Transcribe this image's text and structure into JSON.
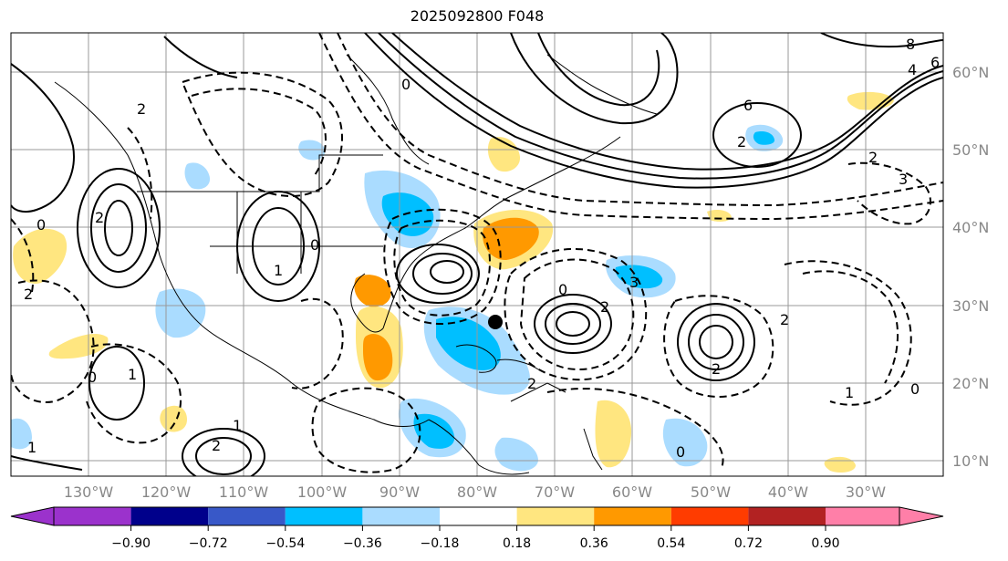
{
  "title": "2025092800 F048",
  "map": {
    "latitude_labels": [
      "60°N",
      "50°N",
      "40°N",
      "30°N",
      "20°N",
      "10°N"
    ],
    "longitude_labels": [
      "130°W",
      "120°W",
      "110°W",
      "100°W",
      "90°W",
      "80°W",
      "70°W",
      "60°W",
      "50°W",
      "40°W",
      "30°W"
    ],
    "contour_labels": [
      "8",
      "6",
      "4",
      "6",
      "2",
      "0",
      "2",
      "3",
      "2",
      "0",
      "2",
      "1",
      "0",
      "2",
      "3",
      "0",
      "1",
      "2",
      "2",
      "0",
      "2",
      "1",
      "1",
      "0",
      "1",
      "2",
      "2",
      "0"
    ],
    "marker": "storm-center"
  },
  "colorbar": {
    "ticks": [
      "−0.90",
      "−0.72",
      "−0.54",
      "−0.36",
      "−0.18",
      "0.18",
      "0.36",
      "0.54",
      "0.72",
      "0.90"
    ],
    "colors": [
      "#9b32cc",
      "#00008b",
      "#3858c8",
      "#00bfff",
      "#aadcff",
      "#ffffff",
      "#ffe680",
      "#ff9900",
      "#ff3c00",
      "#b22222",
      "#ff7fa8",
      "#ff7fa8"
    ],
    "under_color": "#9b32cc",
    "over_color": "#ff7fa8"
  }
}
